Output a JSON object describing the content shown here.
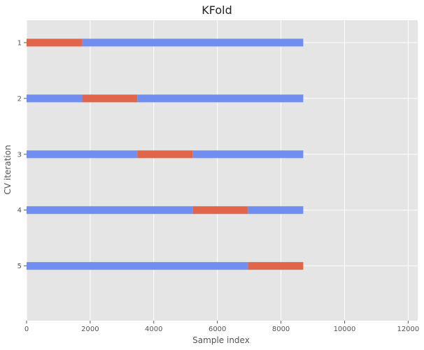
{
  "chart_data": {
    "type": "bar",
    "orientation": "horizontal-segments",
    "title": "KFold",
    "xlabel": "Sample index",
    "ylabel": "CV iteration",
    "xlim": [
      0,
      12300
    ],
    "xticks": [
      "0",
      "2000",
      "4000",
      "6000",
      "8000",
      "10000",
      "12000"
    ],
    "xtick_values": [
      0,
      2000,
      4000,
      6000,
      8000,
      10000,
      12000
    ],
    "ylim": [
      0.6,
      5.98
    ],
    "categories": [
      "1",
      "2",
      "3",
      "4",
      "5"
    ],
    "grid": true,
    "colors": {
      "train": "#6f8ef0",
      "test": "#e0654a",
      "background": "#e5e5e5",
      "grid": "#ffffff"
    },
    "iterations": [
      {
        "label": "1",
        "segments": [
          {
            "role": "test",
            "start": 0,
            "end": 1740
          },
          {
            "role": "train",
            "start": 1740,
            "end": 8700
          }
        ]
      },
      {
        "label": "2",
        "segments": [
          {
            "role": "train",
            "start": 0,
            "end": 1740
          },
          {
            "role": "test",
            "start": 1740,
            "end": 3480
          },
          {
            "role": "train",
            "start": 3480,
            "end": 8700
          }
        ]
      },
      {
        "label": "3",
        "segments": [
          {
            "role": "train",
            "start": 0,
            "end": 3480
          },
          {
            "role": "test",
            "start": 3480,
            "end": 5220
          },
          {
            "role": "train",
            "start": 5220,
            "end": 8700
          }
        ]
      },
      {
        "label": "4",
        "segments": [
          {
            "role": "train",
            "start": 0,
            "end": 5220
          },
          {
            "role": "test",
            "start": 5220,
            "end": 6960
          },
          {
            "role": "train",
            "start": 6960,
            "end": 8700
          }
        ]
      },
      {
        "label": "5",
        "segments": [
          {
            "role": "train",
            "start": 0,
            "end": 6960
          },
          {
            "role": "test",
            "start": 6960,
            "end": 8700
          }
        ]
      }
    ]
  }
}
